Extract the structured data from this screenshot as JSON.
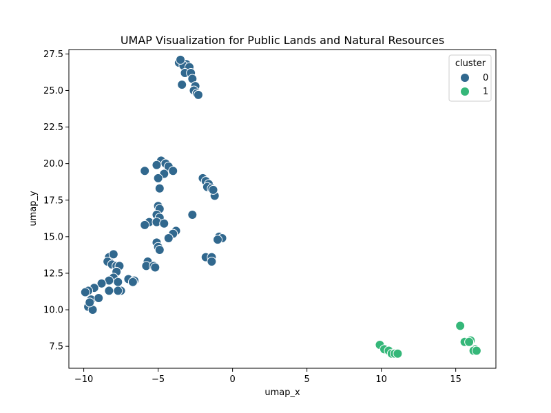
{
  "chart_data": {
    "type": "scatter",
    "title": "UMAP Visualization for Public Lands and Natural Resources",
    "xlabel": "umap_x",
    "ylabel": "umap_y",
    "xlim": [
      -11.0,
      17.7
    ],
    "ylim": [
      6.0,
      27.8
    ],
    "xticks": [
      -10,
      -5,
      0,
      5,
      10,
      15
    ],
    "yticks": [
      7.5,
      10.0,
      12.5,
      15.0,
      17.5,
      20.0,
      22.5,
      25.0,
      27.5
    ],
    "xtick_labels": [
      "−10",
      "−5",
      "0",
      "5",
      "10",
      "15"
    ],
    "ytick_labels": [
      "7.5",
      "10.0",
      "12.5",
      "15.0",
      "17.5",
      "20.0",
      "22.5",
      "25.0",
      "27.5"
    ],
    "grid": false,
    "legend": {
      "title": "cluster",
      "placement": "top-right",
      "entries": [
        {
          "label": "0",
          "color": "#31688e"
        },
        {
          "label": "1",
          "color": "#35b779"
        }
      ]
    },
    "series": [
      {
        "name": "0",
        "color": "#31688e",
        "points": [
          [
            -3.6,
            26.9
          ],
          [
            -3.1,
            26.8
          ],
          [
            -3.3,
            26.7
          ],
          [
            -3.5,
            27.1
          ],
          [
            -2.9,
            26.6
          ],
          [
            -3.2,
            26.2
          ],
          [
            -2.8,
            26.2
          ],
          [
            -2.7,
            25.8
          ],
          [
            -3.4,
            25.4
          ],
          [
            -2.5,
            25.3
          ],
          [
            -2.6,
            25.0
          ],
          [
            -2.4,
            24.8
          ],
          [
            -2.3,
            24.7
          ],
          [
            -4.8,
            20.2
          ],
          [
            -4.5,
            20.0
          ],
          [
            -5.1,
            19.9
          ],
          [
            -4.3,
            19.8
          ],
          [
            -4.0,
            19.5
          ],
          [
            -4.6,
            19.3
          ],
          [
            -5.9,
            19.5
          ],
          [
            -5.0,
            19.0
          ],
          [
            -4.9,
            18.3
          ],
          [
            -2.0,
            19.0
          ],
          [
            -1.8,
            18.8
          ],
          [
            -1.6,
            18.6
          ],
          [
            -1.7,
            18.4
          ],
          [
            -1.4,
            18.3
          ],
          [
            -1.2,
            17.8
          ],
          [
            -1.3,
            18.2
          ],
          [
            -5.0,
            17.1
          ],
          [
            -4.9,
            16.9
          ],
          [
            -5.1,
            16.5
          ],
          [
            -4.9,
            16.3
          ],
          [
            -5.6,
            16.0
          ],
          [
            -5.1,
            16.0
          ],
          [
            -4.6,
            15.9
          ],
          [
            -5.9,
            15.8
          ],
          [
            -3.8,
            15.4
          ],
          [
            -4.0,
            15.2
          ],
          [
            -4.3,
            14.9
          ],
          [
            -2.7,
            16.5
          ],
          [
            -0.9,
            15.0
          ],
          [
            -0.7,
            14.9
          ],
          [
            -1.0,
            14.8
          ],
          [
            -1.8,
            13.6
          ],
          [
            -1.4,
            13.6
          ],
          [
            -1.4,
            13.3
          ],
          [
            -5.1,
            14.6
          ],
          [
            -5.0,
            14.3
          ],
          [
            -4.9,
            14.1
          ],
          [
            -5.7,
            13.3
          ],
          [
            -5.8,
            13.0
          ],
          [
            -5.3,
            13.0
          ],
          [
            -5.2,
            12.9
          ],
          [
            -8.3,
            13.6
          ],
          [
            -8.0,
            13.8
          ],
          [
            -8.4,
            13.3
          ],
          [
            -8.1,
            13.1
          ],
          [
            -7.8,
            13.0
          ],
          [
            -7.6,
            13.0
          ],
          [
            -7.8,
            12.6
          ],
          [
            -8.0,
            12.2
          ],
          [
            -8.3,
            12.0
          ],
          [
            -7.7,
            11.9
          ],
          [
            -7.5,
            11.3
          ],
          [
            -7.7,
            11.3
          ],
          [
            -8.3,
            11.3
          ],
          [
            -8.8,
            11.8
          ],
          [
            -9.3,
            11.5
          ],
          [
            -9.7,
            11.3
          ],
          [
            -9.9,
            11.2
          ],
          [
            -7.0,
            12.1
          ],
          [
            -6.6,
            12.0
          ],
          [
            -6.7,
            11.9
          ],
          [
            -9.5,
            10.7
          ],
          [
            -9.0,
            10.8
          ],
          [
            -9.7,
            10.2
          ],
          [
            -9.4,
            10.0
          ],
          [
            -9.6,
            10.5
          ]
        ]
      },
      {
        "name": "1",
        "color": "#35b779",
        "points": [
          [
            9.9,
            7.6
          ],
          [
            10.2,
            7.3
          ],
          [
            10.5,
            7.2
          ],
          [
            10.7,
            7.0
          ],
          [
            10.9,
            7.0
          ],
          [
            11.1,
            7.0
          ],
          [
            15.3,
            8.9
          ],
          [
            15.6,
            7.8
          ],
          [
            16.0,
            7.9
          ],
          [
            15.9,
            7.8
          ],
          [
            16.3,
            7.3
          ],
          [
            16.2,
            7.2
          ],
          [
            16.4,
            7.2
          ]
        ]
      }
    ]
  }
}
